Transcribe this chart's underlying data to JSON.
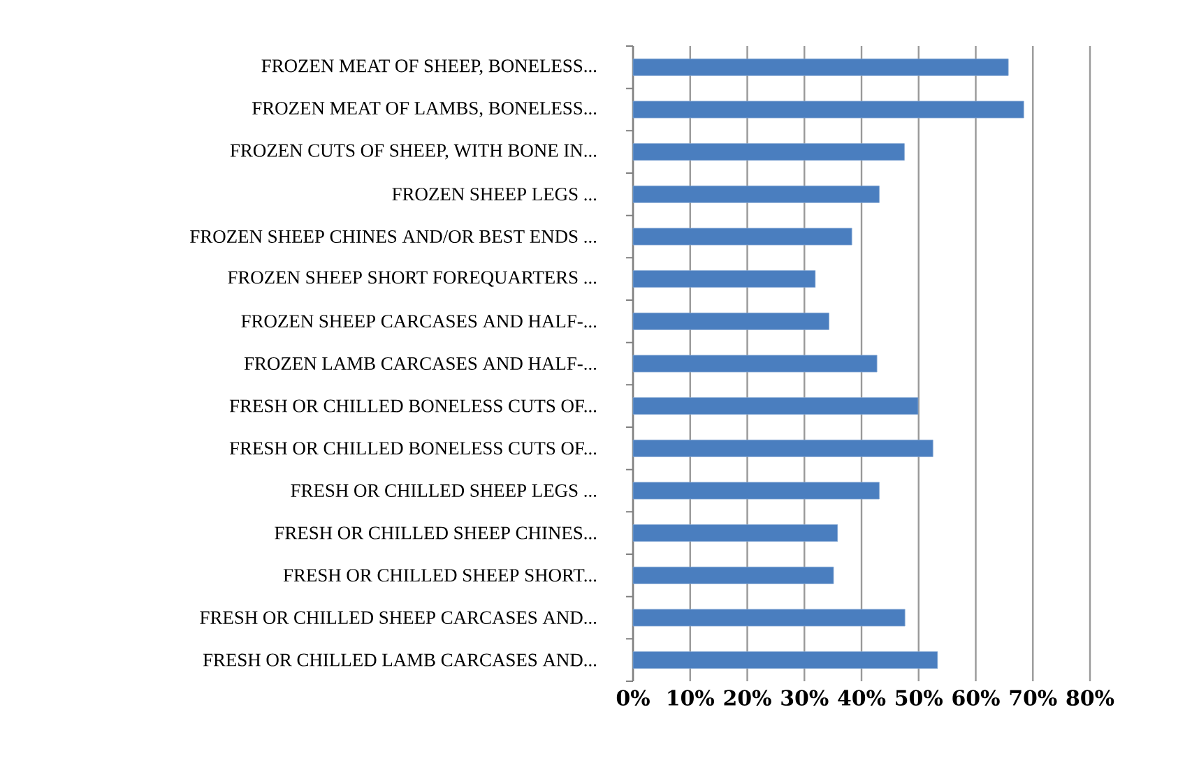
{
  "chart_data": {
    "type": "bar",
    "orientation": "horizontal",
    "color": "#4a7ebf",
    "categories": [
      "FROZEN MEAT OF SHEEP, BONELESS...",
      "FROZEN MEAT OF LAMBS, BONELESS...",
      "FROZEN CUTS OF SHEEP, WITH BONE IN...",
      "FROZEN SHEEP LEGS ...",
      "FROZEN SHEEP CHINES AND/OR BEST ENDS ...",
      "FROZEN SHEEP SHORT FOREQUARTERS ...",
      "FROZEN SHEEP CARCASES AND HALF-...",
      "FROZEN LAMB CARCASES AND HALF-...",
      "FRESH OR CHILLED BONELESS CUTS OF...",
      "FRESH OR CHILLED BONELESS CUTS OF...",
      "FRESH OR CHILLED SHEEP LEGS ...",
      "FRESH OR CHILLED SHEEP CHINES...",
      "FRESH OR CHILLED SHEEP SHORT...",
      "FRESH OR CHILLED SHEEP CARCASES AND...",
      "FRESH OR CHILLED LAMB CARCASES AND..."
    ],
    "values": [
      65.7,
      68.4,
      47.5,
      43.1,
      38.3,
      31.9,
      34.3,
      42.7,
      49.9,
      52.5,
      43.1,
      35.8,
      35.1,
      47.6,
      53.3
    ],
    "xlim": [
      0,
      80
    ],
    "xticks": [
      {
        "value": 0,
        "label": "0%"
      },
      {
        "value": 10,
        "label": "10%"
      },
      {
        "value": 20,
        "label": "20%"
      },
      {
        "value": 30,
        "label": "30%"
      },
      {
        "value": 40,
        "label": "40%"
      },
      {
        "value": 50,
        "label": "50%"
      },
      {
        "value": 60,
        "label": "60%"
      },
      {
        "value": 70,
        "label": "70%"
      },
      {
        "value": 80,
        "label": "80%"
      }
    ],
    "grid": "x"
  }
}
